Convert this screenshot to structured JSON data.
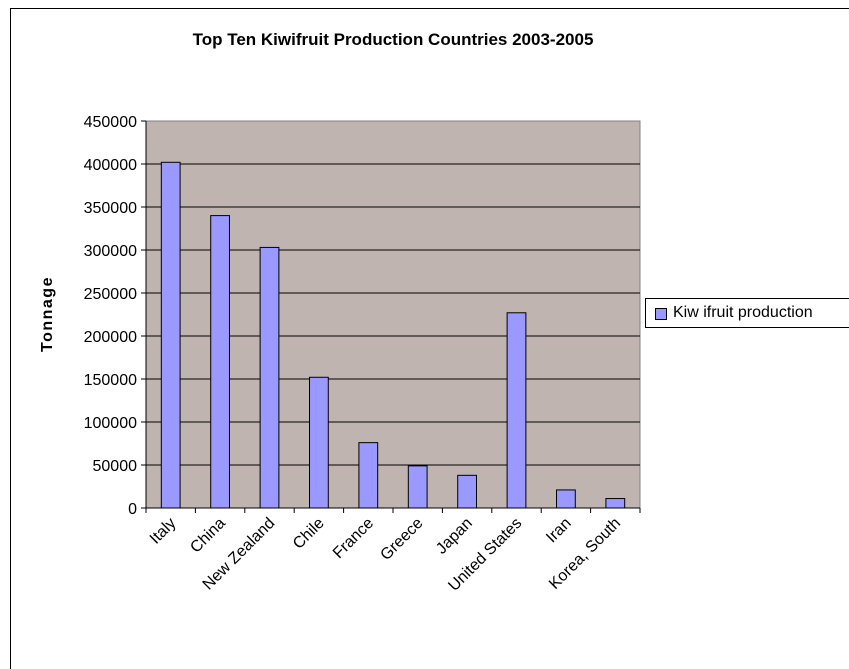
{
  "chart_data": {
    "type": "bar",
    "title": "Top Ten Kiwifruit Production Countries 2003-2005",
    "xlabel": "",
    "ylabel": "Tonnage",
    "categories": [
      "Italy",
      "China",
      "New Zealand",
      "Chile",
      "France",
      "Greece",
      "Japan",
      "United States",
      "Iran",
      "Korea, South"
    ],
    "series": [
      {
        "name": "Kiw ifruit production",
        "values": [
          402000,
          340000,
          303000,
          152000,
          76000,
          49000,
          38000,
          227000,
          21000,
          11000
        ]
      }
    ],
    "ylim": [
      0,
      450000
    ],
    "yticks": [
      "0",
      "50000",
      "100000",
      "150000",
      "200000",
      "250000",
      "300000",
      "350000",
      "400000",
      "450000"
    ],
    "grid": true,
    "legend_position": "right",
    "colors": {
      "bar": "#9999ff",
      "plot_background": "#c0b4b0",
      "bar_border": "#000000"
    }
  }
}
